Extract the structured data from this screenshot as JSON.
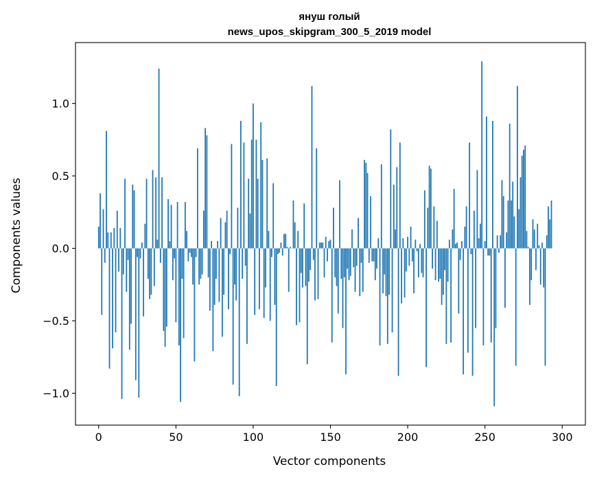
{
  "chart_data": {
    "type": "bar",
    "title_line1": "януш голый",
    "title_line2": "news_upos_skipgram_300_5_2019 model",
    "xlabel": "Vector components",
    "ylabel": "Components values",
    "xlim": [
      -15,
      315
    ],
    "ylim": [
      -1.22,
      1.42
    ],
    "xticks": [
      0,
      50,
      100,
      150,
      200,
      250,
      300
    ],
    "xtick_labels": [
      "0",
      "50",
      "100",
      "150",
      "200",
      "250",
      "300"
    ],
    "yticks": [
      -1.0,
      -0.5,
      0.0,
      0.5,
      1.0
    ],
    "ytick_labels": [
      "−1.0",
      "−0.5",
      "0.0",
      "0.5",
      "1.0"
    ],
    "bar_color": "#1f77b4",
    "grid": false,
    "values": [
      0.15,
      0.38,
      -0.46,
      0.27,
      -0.1,
      0.81,
      0.11,
      -0.83,
      0.11,
      -0.69,
      0.14,
      -0.58,
      0.26,
      -0.16,
      0.14,
      -1.04,
      -0.18,
      0.48,
      -0.3,
      -0.08,
      -0.7,
      -0.52,
      0.44,
      0.4,
      -0.91,
      -0.06,
      -1.03,
      -0.07,
      0.04,
      -0.47,
      0.17,
      0.48,
      -0.21,
      -0.35,
      -0.32,
      0.54,
      -0.26,
      0.49,
      0.06,
      1.24,
      -0.1,
      0.49,
      -0.57,
      -0.68,
      -0.54,
      0.34,
      0.05,
      0.3,
      -0.22,
      -0.07,
      -0.51,
      0.32,
      -0.67,
      -1.06,
      -0.21,
      -0.62,
      0.32,
      0.12,
      -0.09,
      -0.03,
      -0.06,
      -0.25,
      -0.78,
      -0.06,
      0.69,
      -0.25,
      -0.21,
      -0.18,
      0.26,
      0.83,
      0.78,
      -0.2,
      -0.43,
      0.05,
      -0.71,
      -0.39,
      -0.21,
      0.05,
      -0.37,
      0.21,
      -0.61,
      -0.32,
      0.18,
      0.26,
      -0.42,
      -0.04,
      0.72,
      -0.94,
      -0.25,
      -0.36,
      0.28,
      -1.02,
      0.88,
      -0.21,
      0.73,
      -0.12,
      -0.66,
      0.48,
      0.24,
      0.75,
      1.0,
      -0.46,
      0.75,
      0.48,
      -0.42,
      0.87,
      0.61,
      -0.48,
      -0.27,
      0.62,
      0.12,
      -0.5,
      -0.06,
      0.45,
      -0.39,
      -0.95,
      -0.04,
      -0.03,
      0.04,
      -0.05,
      0.1,
      0.1,
      0.01,
      -0.3,
      0.01,
      0.0,
      0.33,
      0.18,
      -0.53,
      0.12,
      -0.51,
      -0.17,
      -0.27,
      0.31,
      -0.26,
      -0.8,
      -0.23,
      -0.15,
      1.12,
      -0.08,
      -0.36,
      0.69,
      -0.35,
      0.04,
      0.04,
      0.04,
      -0.2,
      0.08,
      -0.09,
      0.05,
      0.06,
      -0.65,
      0.28,
      -0.2,
      -0.26,
      -0.45,
      0.47,
      -0.21,
      -0.55,
      -0.2,
      -0.87,
      -0.14,
      -0.22,
      -0.19,
      0.13,
      -0.13,
      -0.3,
      -0.12,
      0.21,
      -0.33,
      -0.1,
      -0.3,
      0.61,
      0.59,
      0.52,
      -0.1,
      0.36,
      -0.09,
      -0.09,
      -0.22,
      -0.14,
      0.07,
      -0.67,
      0.58,
      -0.31,
      -0.18,
      -0.33,
      -0.66,
      -0.32,
      0.82,
      -0.58,
      0.44,
      0.13,
      0.56,
      -0.88,
      0.73,
      -0.38,
      0.07,
      -0.34,
      -0.16,
      0.08,
      -0.12,
      0.15,
      -0.09,
      -0.31,
      0.06,
      -0.02,
      -0.2,
      0.03,
      -0.17,
      -0.2,
      0.4,
      -0.82,
      0.28,
      0.57,
      0.55,
      -0.14,
      0.29,
      -0.22,
      0.19,
      -0.23,
      -0.21,
      -0.39,
      -0.32,
      -0.15,
      -0.66,
      -0.23,
      0.06,
      -0.65,
      0.13,
      0.41,
      0.03,
      0.04,
      -0.45,
      -0.08,
      0.05,
      -0.87,
      0.15,
      0.29,
      -0.72,
      0.73,
      -0.04,
      -0.88,
      0.26,
      -0.55,
      0.54,
      0.07,
      0.17,
      1.29,
      -0.67,
      0.05,
      0.91,
      -0.05,
      -0.05,
      -0.65,
      0.88,
      -1.09,
      -0.55,
      0.09,
      -0.03,
      0.09,
      0.47,
      0.36,
      -0.41,
      0.11,
      0.33,
      0.86,
      0.33,
      0.46,
      0.22,
      -0.81,
      1.12,
      0.27,
      0.49,
      0.64,
      0.68,
      0.71,
      0.12,
      0.01,
      -0.39,
      -0.22,
      0.2,
      0.13,
      -0.15,
      0.17,
      0.02,
      -0.25,
      0.04,
      -0.27,
      -0.81,
      0.09,
      0.29,
      0.2,
      0.33
    ]
  }
}
